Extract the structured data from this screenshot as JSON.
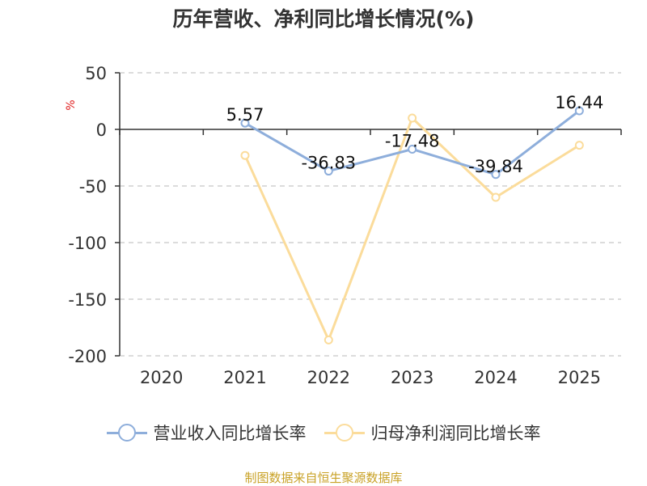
{
  "chart_data": {
    "type": "line",
    "title": "历年营收、净利同比增长情况(%)",
    "ylabel": "%",
    "xlabel": "",
    "ylim": [
      -200,
      50
    ],
    "yticks": [
      50,
      0,
      -50,
      -100,
      -150,
      -200
    ],
    "grid": true,
    "legend_position": "bottom",
    "categories": [
      "2020",
      "2021",
      "2022",
      "2023",
      "2024",
      "2025"
    ],
    "series": [
      {
        "name": "营业收入同比增长率",
        "color": "#8eaedb",
        "values": [
          null,
          5.57,
          -36.83,
          -17.48,
          -39.84,
          16.44
        ],
        "labels": [
          "",
          "5.57",
          "-36.83",
          "-17.48",
          "-39.84",
          "16.44"
        ]
      },
      {
        "name": "归母净利润同比增长率",
        "color": "#fbdc9b",
        "values": [
          null,
          -23,
          -186,
          10,
          -60,
          -14
        ],
        "labels": [
          "",
          "",
          "",
          "",
          "",
          ""
        ]
      }
    ]
  },
  "source": {
    "text": "制图数据来自恒生聚源数据库",
    "color": "#c9a227"
  }
}
